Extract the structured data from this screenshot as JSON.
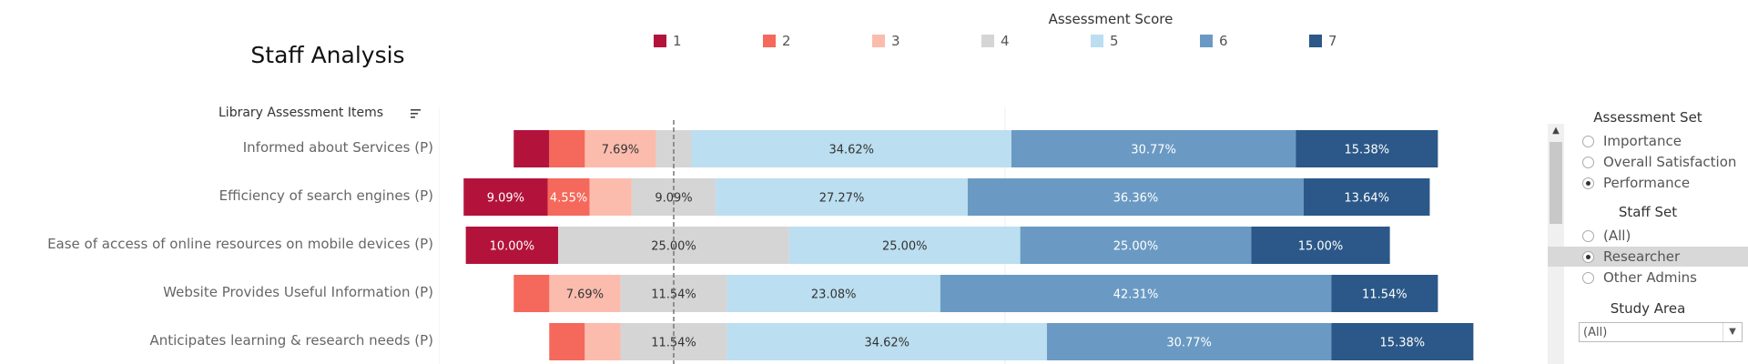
{
  "title": "Staff Analysis",
  "legend": {
    "title": "Assessment Score",
    "items": [
      {
        "label": "1",
        "color": "#b3133b"
      },
      {
        "label": "2",
        "color": "#f4695b"
      },
      {
        "label": "3",
        "color": "#fbbcad"
      },
      {
        "label": "4",
        "color": "#d5d5d5"
      },
      {
        "label": "5",
        "color": "#bbdef0"
      },
      {
        "label": "6",
        "color": "#6a9ac3"
      },
      {
        "label": "7",
        "color": "#2b5888"
      }
    ]
  },
  "items_header": "Library Assessment Items",
  "chart_data": {
    "type": "bar",
    "stacked": "diverging",
    "categories": [
      "Informed about Services (P)",
      "Efficiency of search engines (P)",
      "Ease of access of online resources on mobile devices (P)",
      "Website Provides Useful Information (P)",
      "Anticipates learning & research needs (P)"
    ],
    "series": [
      {
        "name": "1",
        "values": [
          3.85,
          9.09,
          10.0,
          0.0,
          0.0
        ],
        "labels": [
          "",
          "9.09%",
          "10.00%",
          "",
          ""
        ]
      },
      {
        "name": "2",
        "values": [
          3.85,
          4.55,
          0.0,
          3.85,
          3.85
        ],
        "labels": [
          "",
          "4.55%",
          "",
          "",
          ""
        ]
      },
      {
        "name": "3",
        "values": [
          7.69,
          4.55,
          0.0,
          7.69,
          3.85
        ],
        "labels": [
          "7.69%",
          "",
          "",
          "7.69%",
          ""
        ]
      },
      {
        "name": "4",
        "values": [
          3.85,
          9.09,
          25.0,
          11.54,
          11.54
        ],
        "labels": [
          "",
          "9.09%",
          "25.00%",
          "11.54%",
          "11.54%"
        ]
      },
      {
        "name": "5",
        "values": [
          34.62,
          27.27,
          25.0,
          23.08,
          34.62
        ],
        "labels": [
          "34.62%",
          "27.27%",
          "25.00%",
          "23.08%",
          "34.62%"
        ]
      },
      {
        "name": "6",
        "values": [
          30.77,
          36.36,
          25.0,
          42.31,
          30.77
        ],
        "labels": [
          "30.77%",
          "36.36%",
          "25.00%",
          "42.31%",
          "30.77%"
        ]
      },
      {
        "name": "7",
        "values": [
          15.38,
          13.64,
          15.0,
          11.54,
          15.38
        ],
        "labels": [
          "15.38%",
          "13.64%",
          "15.00%",
          "11.54%",
          "15.38%"
        ]
      }
    ],
    "reference_line": "dashed at center of score 4",
    "grid": true
  },
  "panel": {
    "assessment_set": {
      "title": "Assessment Set",
      "options": [
        "Importance",
        "Overall Satisfaction",
        "Performance"
      ],
      "selected": "Performance"
    },
    "staff_set": {
      "title": "Staff Set",
      "options": [
        "(All)",
        "Researcher",
        "Other Admins"
      ],
      "selected": "Researcher"
    },
    "study_area": {
      "title": "Study Area",
      "value": "(All)"
    }
  }
}
